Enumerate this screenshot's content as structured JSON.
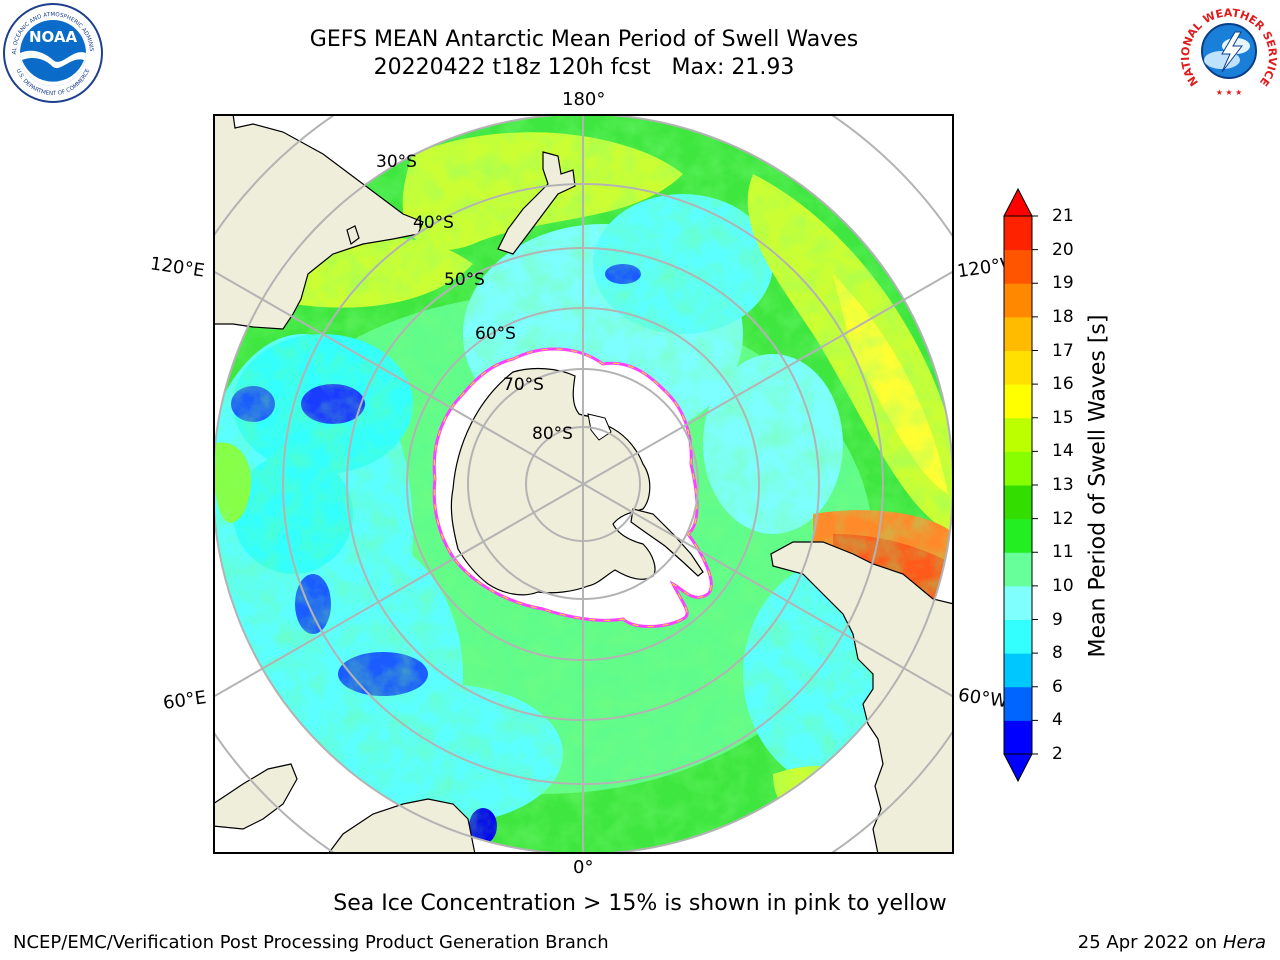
{
  "title": {
    "line1": "GEFS MEAN Antarctic Mean Period of Swell Waves",
    "line2": "20220422 t18z 120h fcst   Max: 21.93"
  },
  "logos": {
    "left": "NOAA",
    "left_ring_top": "NATIONAL OCEANIC AND ATMOSPHERIC ADMINISTRATION",
    "left_ring_bottom": "U.S. DEPARTMENT OF COMMERCE",
    "right_ring": "NATIONAL WEATHER SERVICE"
  },
  "map": {
    "longitude_labels": {
      "top": "180°",
      "bottom": "0°",
      "upper_left": "120°E",
      "upper_right": "120°W",
      "lower_left": "60°E",
      "lower_right": "60°W"
    },
    "latitude_labels": [
      "30°S",
      "40°S",
      "50°S",
      "60°S",
      "70°S",
      "80°S"
    ],
    "colors": {
      "land": "#efeedb",
      "ice": "#ffffff",
      "ice_edge": "#ff40ff",
      "gridline": "#b3b3b3"
    }
  },
  "colorbar": {
    "label": "Mean Period of Swell Waves [s]",
    "ticks": [
      "2",
      "4",
      "6",
      "8",
      "9",
      "10",
      "11",
      "12",
      "13",
      "14",
      "15",
      "16",
      "17",
      "18",
      "19",
      "20",
      "21"
    ],
    "colors": [
      "#0000ff",
      "#0064ff",
      "#00c8ff",
      "#33ffff",
      "#80ffff",
      "#66ff99",
      "#22ee22",
      "#33dd00",
      "#88ff00",
      "#bbff00",
      "#ffff00",
      "#ffe000",
      "#ffbb00",
      "#ff8800",
      "#ff5500",
      "#ff2200"
    ],
    "extend_low_color": "#0000ff",
    "extend_high_color": "#ff0000"
  },
  "note": "Sea Ice Concentration > 15% is shown in pink to yellow",
  "footer": {
    "left": "NCEP/EMC/Verification Post Processing Product Generation Branch",
    "right_prefix": "25 Apr 2022 on ",
    "right_host": "Hera"
  }
}
